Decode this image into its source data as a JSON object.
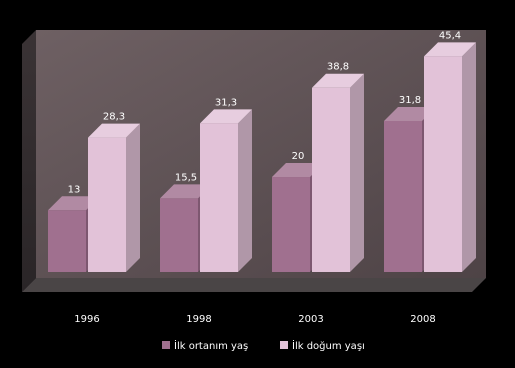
{
  "chart_data": {
    "type": "bar",
    "categories": [
      "1996",
      "1998",
      "2003",
      "2008"
    ],
    "series": [
      {
        "name": "İlk ortanım yaş",
        "values": [
          13.0,
          15.5,
          20.0,
          31.8
        ],
        "labels": [
          "13",
          "15,5",
          "20",
          "31,8"
        ],
        "color": "#a0708f"
      },
      {
        "name": "İlk doğum yaşı",
        "values": [
          28.3,
          31.3,
          38.8,
          45.4
        ],
        "labels": [
          "28,3",
          "31,3",
          "38,8",
          "45,4"
        ],
        "color": "#e2c2d8"
      }
    ],
    "ylim": [
      0,
      50
    ],
    "grid": false,
    "legend": "bottom"
  },
  "colors": {
    "background": "#000000",
    "wall": "#5d5053",
    "floor": "#4a4546",
    "text": "#ffffff"
  }
}
